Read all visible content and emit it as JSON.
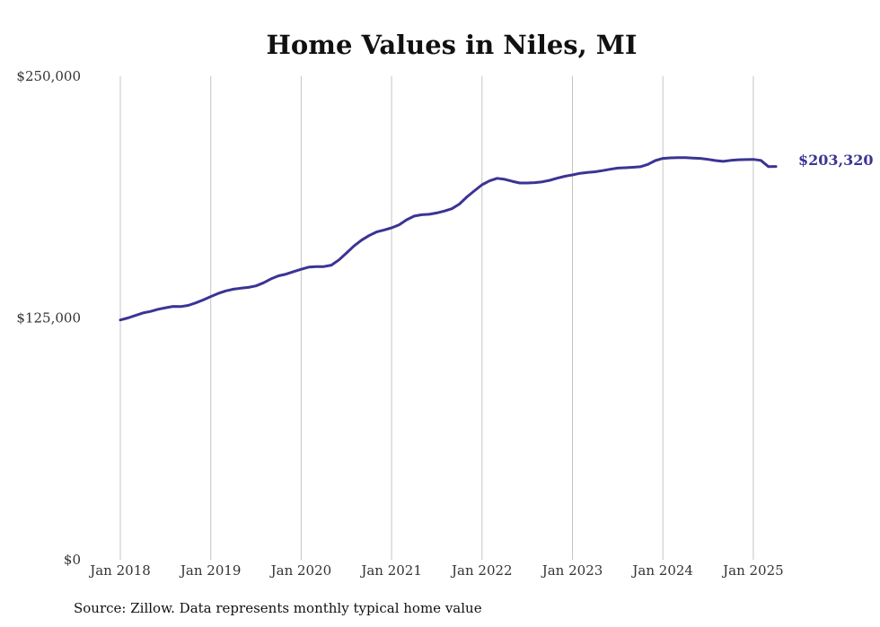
{
  "chart_data": {
    "type": "line",
    "title": "Home Values in Niles, MI",
    "xlabel": "",
    "ylabel": "",
    "ylim": [
      0,
      250000
    ],
    "y_ticks": [
      {
        "value": 0,
        "label": "$0"
      },
      {
        "value": 125000,
        "label": "$125,000"
      },
      {
        "value": 250000,
        "label": "$250,000"
      }
    ],
    "x_ticks": [
      {
        "value": "2018-01",
        "label": "Jan 2018"
      },
      {
        "value": "2019-01",
        "label": "Jan 2019"
      },
      {
        "value": "2020-01",
        "label": "Jan 2020"
      },
      {
        "value": "2021-01",
        "label": "Jan 2021"
      },
      {
        "value": "2022-01",
        "label": "Jan 2022"
      },
      {
        "value": "2023-01",
        "label": "Jan 2023"
      },
      {
        "value": "2024-01",
        "label": "Jan 2024"
      },
      {
        "value": "2025-01",
        "label": "Jan 2025"
      }
    ],
    "grid": "vertical",
    "color": "#3b3494",
    "end_label": "$203,320",
    "source_note": "Source: Zillow. Data represents monthly typical home value",
    "series": [
      {
        "x": [
          "2018-01",
          "2018-02",
          "2018-03",
          "2018-04",
          "2018-05",
          "2018-06",
          "2018-07",
          "2018-08",
          "2018-09",
          "2018-10",
          "2018-11",
          "2018-12",
          "2019-01",
          "2019-02",
          "2019-03",
          "2019-04",
          "2019-05",
          "2019-06",
          "2019-07",
          "2019-08",
          "2019-09",
          "2019-10",
          "2019-11",
          "2019-12",
          "2020-01",
          "2020-02",
          "2020-03",
          "2020-04",
          "2020-05",
          "2020-06",
          "2020-07",
          "2020-08",
          "2020-09",
          "2020-10",
          "2020-11",
          "2020-12",
          "2021-01",
          "2021-02",
          "2021-03",
          "2021-04",
          "2021-05",
          "2021-06",
          "2021-07",
          "2021-08",
          "2021-09",
          "2021-10",
          "2021-11",
          "2021-12",
          "2022-01",
          "2022-02",
          "2022-03",
          "2022-04",
          "2022-05",
          "2022-06",
          "2022-07",
          "2022-08",
          "2022-09",
          "2022-10",
          "2022-11",
          "2022-12",
          "2023-01",
          "2023-02",
          "2023-03",
          "2023-04",
          "2023-05",
          "2023-06",
          "2023-07",
          "2023-08",
          "2023-09",
          "2023-10",
          "2023-11",
          "2023-12",
          "2024-01",
          "2024-02",
          "2024-03",
          "2024-04",
          "2024-05",
          "2024-06",
          "2024-07",
          "2024-08",
          "2024-09",
          "2024-10",
          "2024-11",
          "2024-12",
          "2025-01",
          "2025-02",
          "2025-03",
          "2025-04"
        ],
        "values": [
          124000,
          125000,
          126300,
          127600,
          128400,
          129500,
          130300,
          131000,
          130900,
          131500,
          132800,
          134300,
          136100,
          137700,
          139000,
          139900,
          140400,
          140800,
          141600,
          143200,
          145200,
          146800,
          147700,
          149000,
          150200,
          151300,
          151600,
          151600,
          152300,
          155000,
          158600,
          162200,
          165200,
          167600,
          169500,
          170500,
          171600,
          173200,
          175800,
          177700,
          178400,
          178600,
          179300,
          180300,
          181500,
          183900,
          187600,
          190800,
          193900,
          195900,
          197200,
          196700,
          195700,
          194800,
          194800,
          195000,
          195400,
          196200,
          197300,
          198300,
          199000,
          199800,
          200300,
          200600,
          201200,
          201900,
          202500,
          202700,
          202900,
          203200,
          204400,
          206400,
          207500,
          207800,
          207900,
          207900,
          207700,
          207500,
          207000,
          206400,
          206000,
          206500,
          206800,
          206900,
          207000,
          206500,
          203300,
          203320
        ]
      }
    ]
  }
}
